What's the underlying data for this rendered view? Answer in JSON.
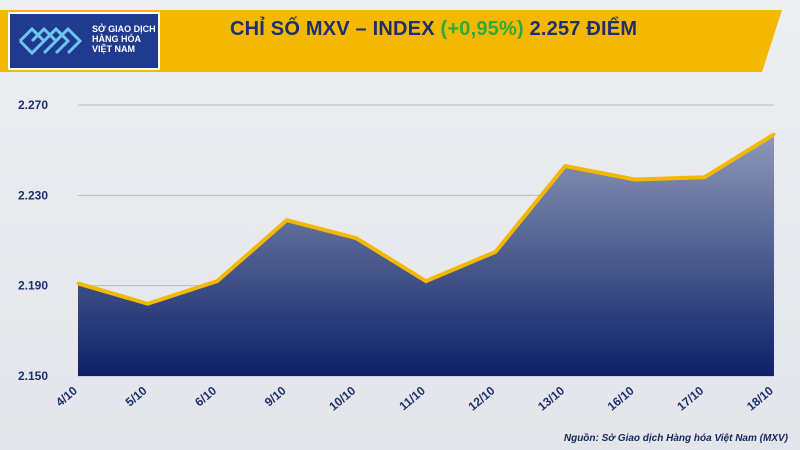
{
  "header": {
    "logo_text": "SỞ GIAO DỊCH HÀNG HÓA VIỆT NAM",
    "title_prefix": "CHỈ SỐ MXV – INDEX ",
    "title_change": "(+0,95%)",
    "title_suffix": " 2.257 ĐIỂM"
  },
  "source": "Nguồn: Sở Giao dịch Hàng hóa Việt Nam (MXV)",
  "colors": {
    "banner_yellow": "#f5b800",
    "logo_blue": "#1f3a8f",
    "title_navy": "#1c2f6e",
    "change_green": "#2eaa3c",
    "area_top": "#8e99b8",
    "area_bottom": "#0d2167",
    "line": "#f5b800"
  },
  "chart_data": {
    "type": "area",
    "categories": [
      "4/10",
      "5/10",
      "6/10",
      "9/10",
      "10/10",
      "11/10",
      "12/10",
      "13/10",
      "16/10",
      "17/10",
      "18/10"
    ],
    "values": [
      2191,
      2182,
      2192,
      2219,
      2211,
      2192,
      2205,
      2243,
      2237,
      2238,
      2257
    ],
    "ylim": [
      2150,
      2270
    ],
    "yticks": [
      2150,
      2190,
      2230,
      2270
    ],
    "ytick_labels": [
      "2.150",
      "2.190",
      "2.230",
      "2.270"
    ],
    "grid": true
  }
}
